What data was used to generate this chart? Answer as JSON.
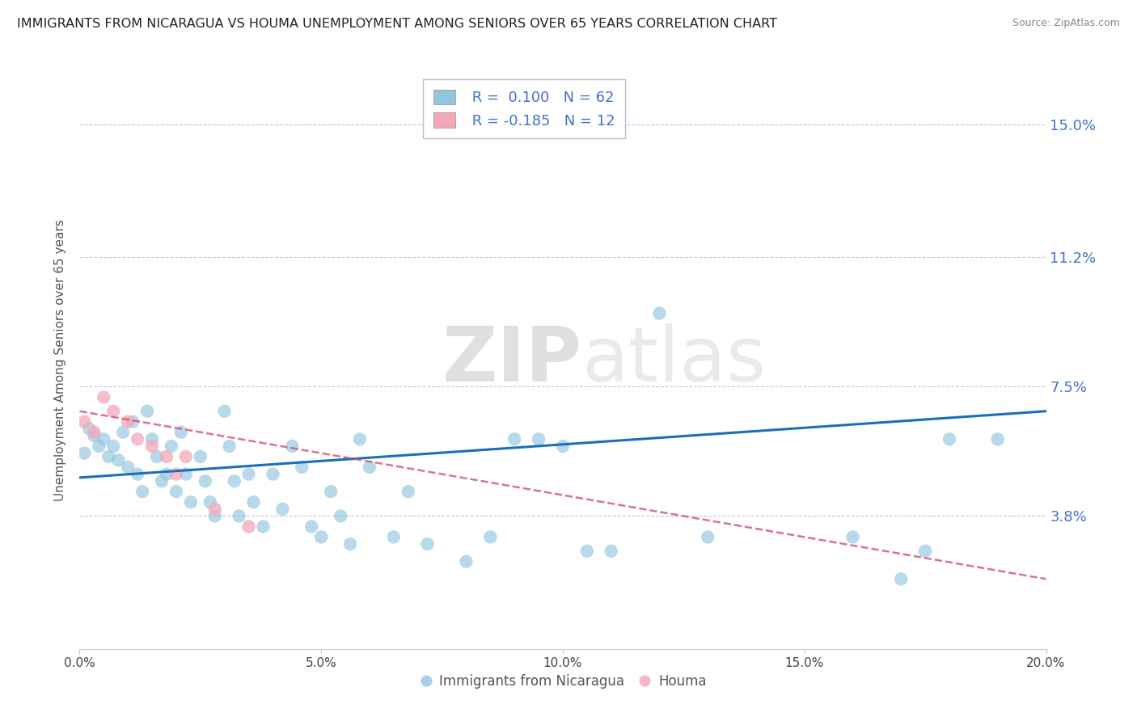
{
  "title": "IMMIGRANTS FROM NICARAGUA VS HOUMA UNEMPLOYMENT AMONG SENIORS OVER 65 YEARS CORRELATION CHART",
  "source": "Source: ZipAtlas.com",
  "ylabel": "Unemployment Among Seniors over 65 years",
  "xlim": [
    0.0,
    0.2
  ],
  "ylim": [
    0.0,
    0.165
  ],
  "yticks": [
    0.038,
    0.075,
    0.112,
    0.15
  ],
  "ytick_labels": [
    "3.8%",
    "7.5%",
    "11.2%",
    "15.0%"
  ],
  "xticks": [
    0.0,
    0.05,
    0.1,
    0.15,
    0.2
  ],
  "xtick_labels": [
    "0.0%",
    "5.0%",
    "10.0%",
    "15.0%",
    "20.0%"
  ],
  "R_blue": 0.1,
  "N_blue": 62,
  "R_pink": -0.185,
  "N_pink": 12,
  "blue_color": "#92c5de",
  "pink_color": "#f4a7b9",
  "trend_blue": "#1a6fba",
  "trend_pink": "#d45070",
  "watermark_zip": "ZIP",
  "watermark_atlas": "atlas",
  "legend_label_blue": "Immigrants from Nicaragua",
  "legend_label_pink": "Houma",
  "blue_scatter_x": [
    0.001,
    0.002,
    0.003,
    0.004,
    0.005,
    0.006,
    0.007,
    0.008,
    0.009,
    0.01,
    0.011,
    0.012,
    0.013,
    0.014,
    0.015,
    0.016,
    0.017,
    0.018,
    0.019,
    0.02,
    0.021,
    0.022,
    0.023,
    0.025,
    0.026,
    0.027,
    0.028,
    0.03,
    0.031,
    0.032,
    0.033,
    0.035,
    0.036,
    0.038,
    0.04,
    0.042,
    0.044,
    0.046,
    0.048,
    0.05,
    0.052,
    0.054,
    0.056,
    0.058,
    0.06,
    0.065,
    0.068,
    0.072,
    0.08,
    0.085,
    0.09,
    0.095,
    0.1,
    0.105,
    0.11,
    0.12,
    0.13,
    0.16,
    0.17,
    0.175,
    0.18,
    0.19
  ],
  "blue_scatter_y": [
    0.056,
    0.063,
    0.061,
    0.058,
    0.06,
    0.055,
    0.058,
    0.054,
    0.062,
    0.052,
    0.065,
    0.05,
    0.045,
    0.068,
    0.06,
    0.055,
    0.048,
    0.05,
    0.058,
    0.045,
    0.062,
    0.05,
    0.042,
    0.055,
    0.048,
    0.042,
    0.038,
    0.068,
    0.058,
    0.048,
    0.038,
    0.05,
    0.042,
    0.035,
    0.05,
    0.04,
    0.058,
    0.052,
    0.035,
    0.032,
    0.045,
    0.038,
    0.03,
    0.06,
    0.052,
    0.032,
    0.045,
    0.03,
    0.025,
    0.032,
    0.06,
    0.06,
    0.058,
    0.028,
    0.028,
    0.096,
    0.032,
    0.032,
    0.02,
    0.028,
    0.06,
    0.06
  ],
  "pink_scatter_x": [
    0.001,
    0.003,
    0.005,
    0.007,
    0.01,
    0.012,
    0.015,
    0.018,
    0.02,
    0.022,
    0.028,
    0.035
  ],
  "pink_scatter_y": [
    0.065,
    0.062,
    0.072,
    0.068,
    0.065,
    0.06,
    0.058,
    0.055,
    0.05,
    0.055,
    0.04,
    0.035
  ],
  "blue_trend_x0": 0.0,
  "blue_trend_x1": 0.2,
  "blue_trend_y0": 0.049,
  "blue_trend_y1": 0.068,
  "pink_trend_x0": 0.0,
  "pink_trend_x1": 0.2,
  "pink_trend_y0": 0.068,
  "pink_trend_y1": 0.02
}
